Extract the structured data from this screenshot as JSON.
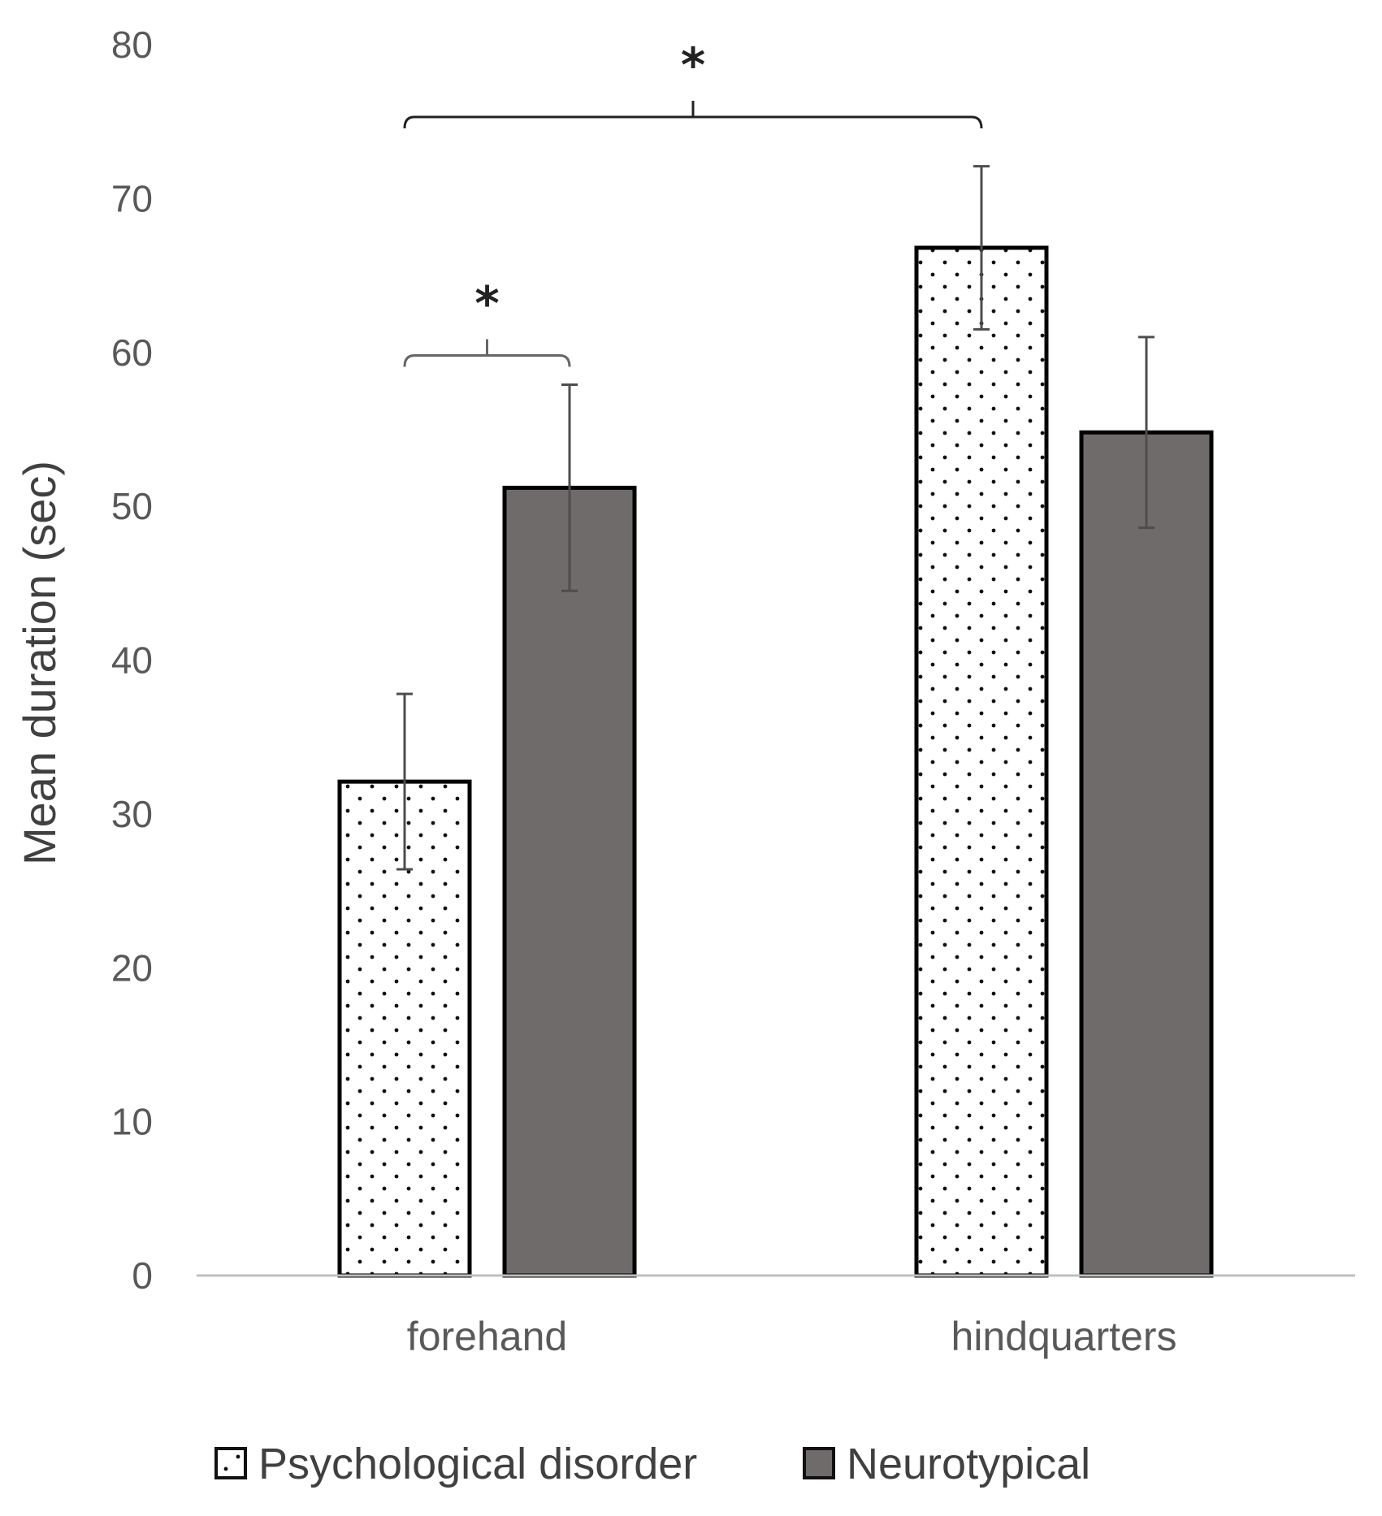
{
  "chart_data": {
    "type": "bar",
    "ylabel": "Mean duration (sec)",
    "xlabel": "",
    "ylim": [
      0,
      80
    ],
    "yticks": [
      "0",
      "10",
      "20",
      "30",
      "40",
      "50",
      "60",
      "70",
      "80"
    ],
    "categories": [
      "forehand",
      "hindquarters"
    ],
    "series": [
      {
        "name": "Psychological disorder",
        "values": [
          32.1,
          66.8
        ],
        "error": [
          5.7,
          5.3
        ],
        "pattern": "dotted",
        "color": "#ffffff"
      },
      {
        "name": "Neurotypical",
        "values": [
          51.2,
          54.8
        ],
        "error": [
          6.7,
          6.2
        ],
        "pattern": "solid",
        "color": "#6e6b6a"
      }
    ],
    "grid": false,
    "legend_position": "bottom",
    "annotations": [
      {
        "text": "*",
        "from": {
          "category": 0,
          "series": 0
        },
        "to": {
          "category": 0,
          "series": 1
        },
        "y": 59.8
      },
      {
        "text": "*",
        "from": {
          "category": 0,
          "series": 0
        },
        "to": {
          "category": 1,
          "series": 0
        },
        "y": 75.3
      }
    ]
  }
}
